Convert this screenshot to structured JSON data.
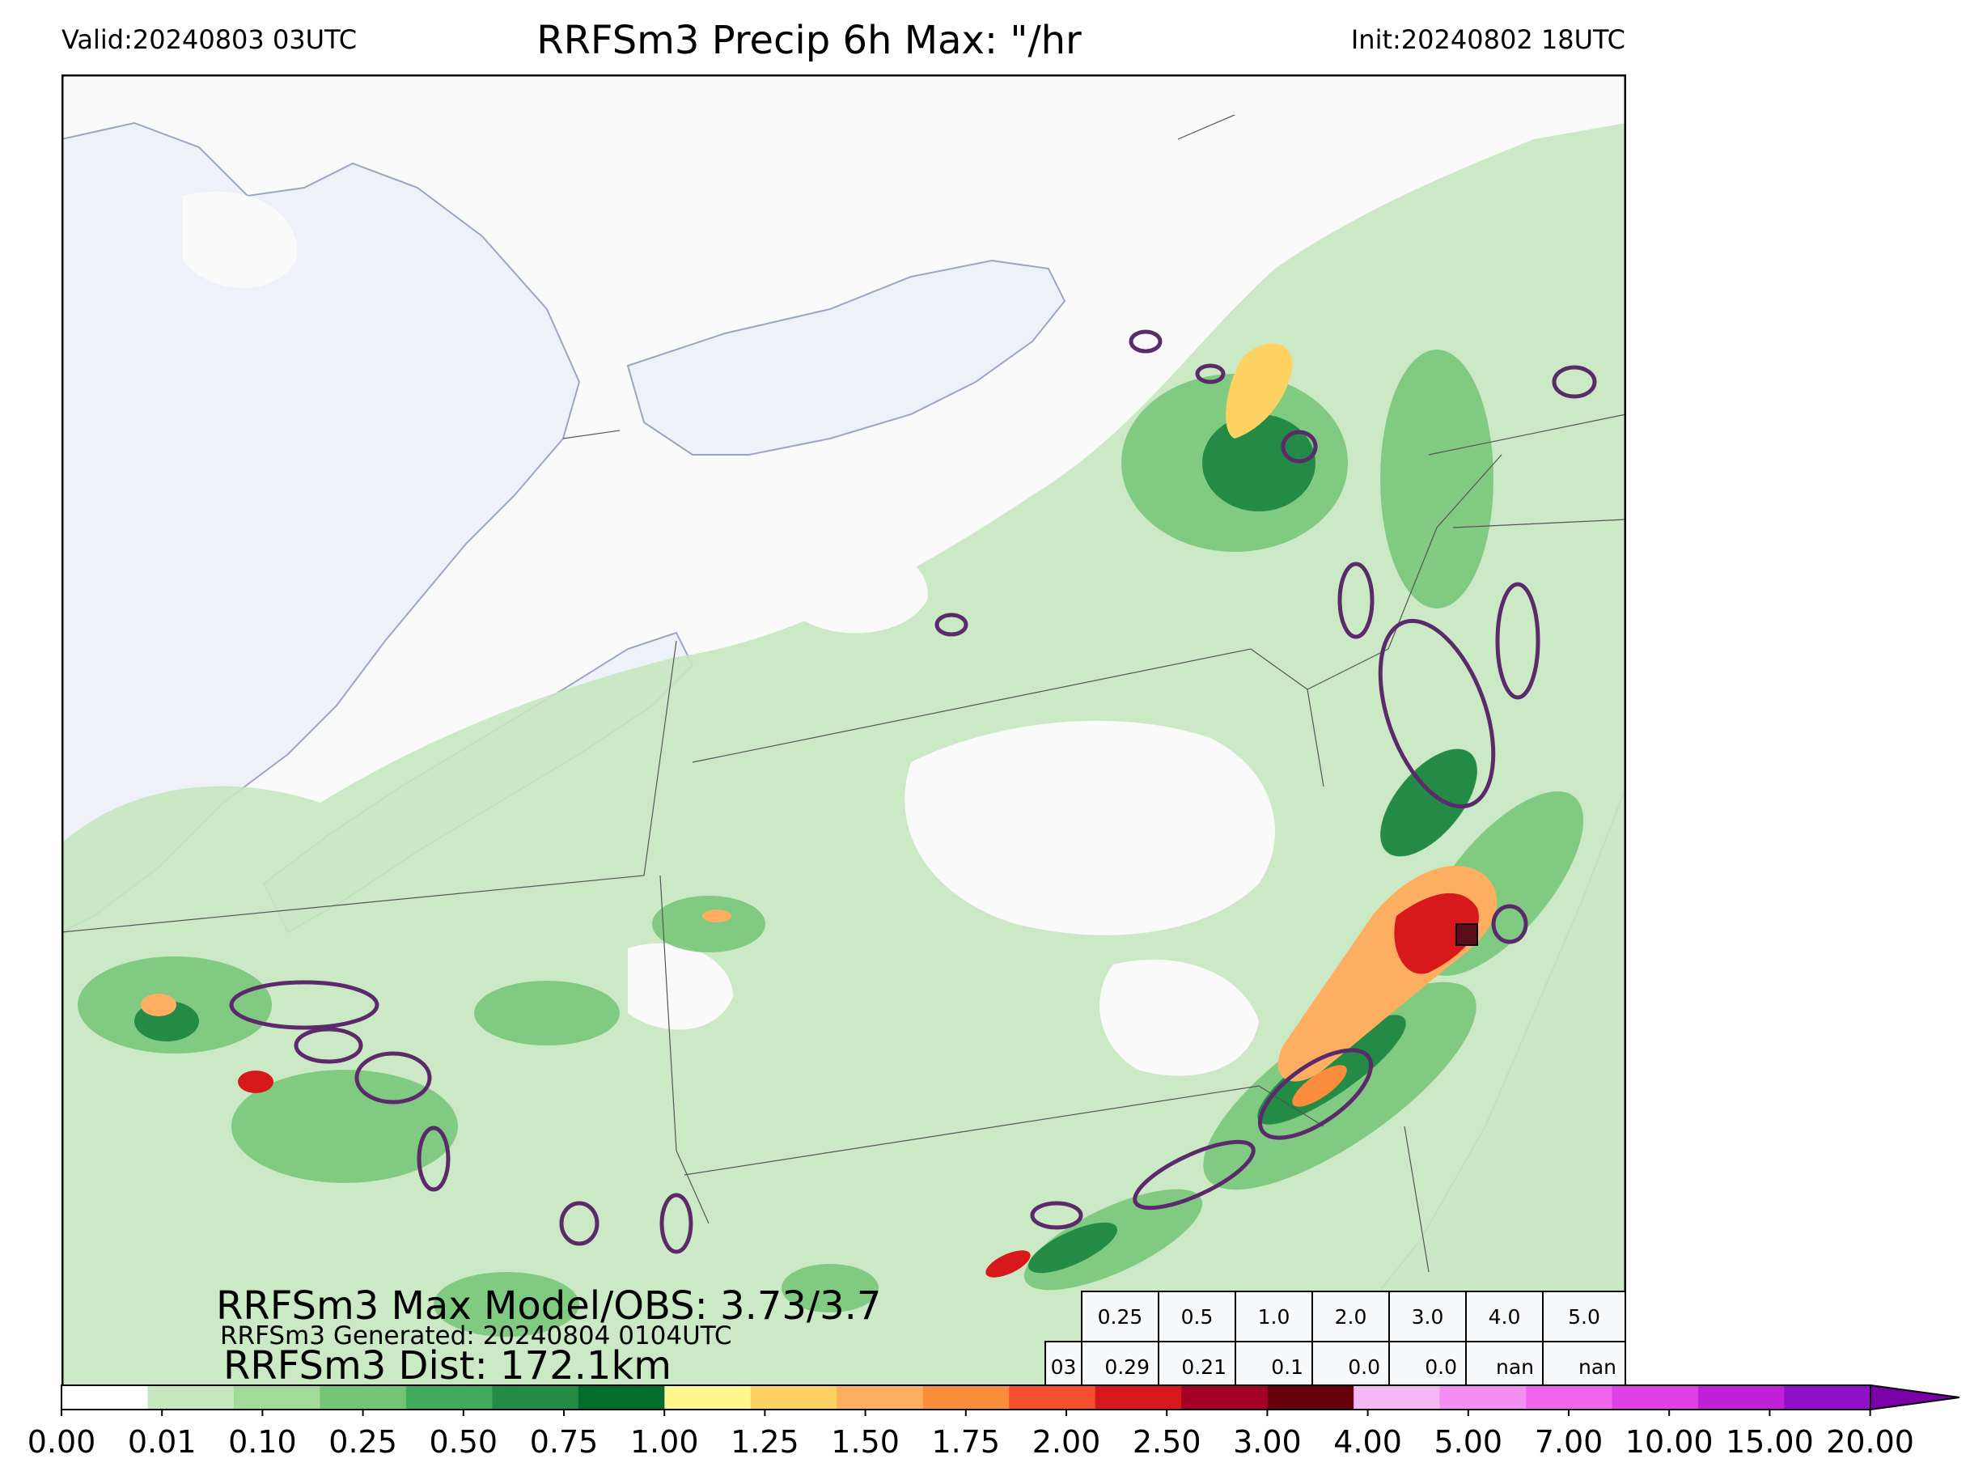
{
  "header": {
    "valid": "Valid:20240803 03UTC",
    "title": "RRFSm3 Precip 6h Max: \"/hr",
    "init": "Init:20240802 18UTC"
  },
  "stats": {
    "max": "RRFSm3 Max Model/OBS: 3.73/3.7",
    "generated": "RRFSm3 Generated: 20240804 0104UTC",
    "dist": "RRFSm3 Dist: 172.1km"
  },
  "table": {
    "thresholds": [
      "0.25",
      "0.5",
      "1.0",
      "2.0",
      "3.0",
      "4.0",
      "5.0"
    ],
    "row_label": "03",
    "values": [
      "0.29",
      "0.21",
      "0.1",
      "0.0",
      "0.0",
      "nan",
      "nan"
    ]
  },
  "colorbar": {
    "ticks": [
      "0.00",
      "0.01",
      "0.10",
      "0.25",
      "0.50",
      "0.75",
      "1.00",
      "1.25",
      "1.50",
      "1.75",
      "2.00",
      "2.50",
      "3.00",
      "4.00",
      "5.00",
      "7.00",
      "10.00",
      "15.00",
      "20.00"
    ],
    "colors": [
      "#ffffff",
      "#c7e7c0",
      "#a1da99",
      "#74c476",
      "#41ab5d",
      "#238b45",
      "#006d2c",
      "#fff68f",
      "#fdd262",
      "#fdae61",
      "#fc8d3c",
      "#f4502e",
      "#d7191c",
      "#a50026",
      "#67000d",
      "#f6b8f4",
      "#f28ff0",
      "#ee66ec",
      "#e040e6",
      "#c020d8",
      "#9010c8"
    ],
    "extend_color": "#7a00a8"
  },
  "map": {
    "water_color": "#eef2f8",
    "land_color": "#fafafa",
    "contour_color": "#5b2a6b",
    "obs_box_color": "#5b0f1a"
  }
}
